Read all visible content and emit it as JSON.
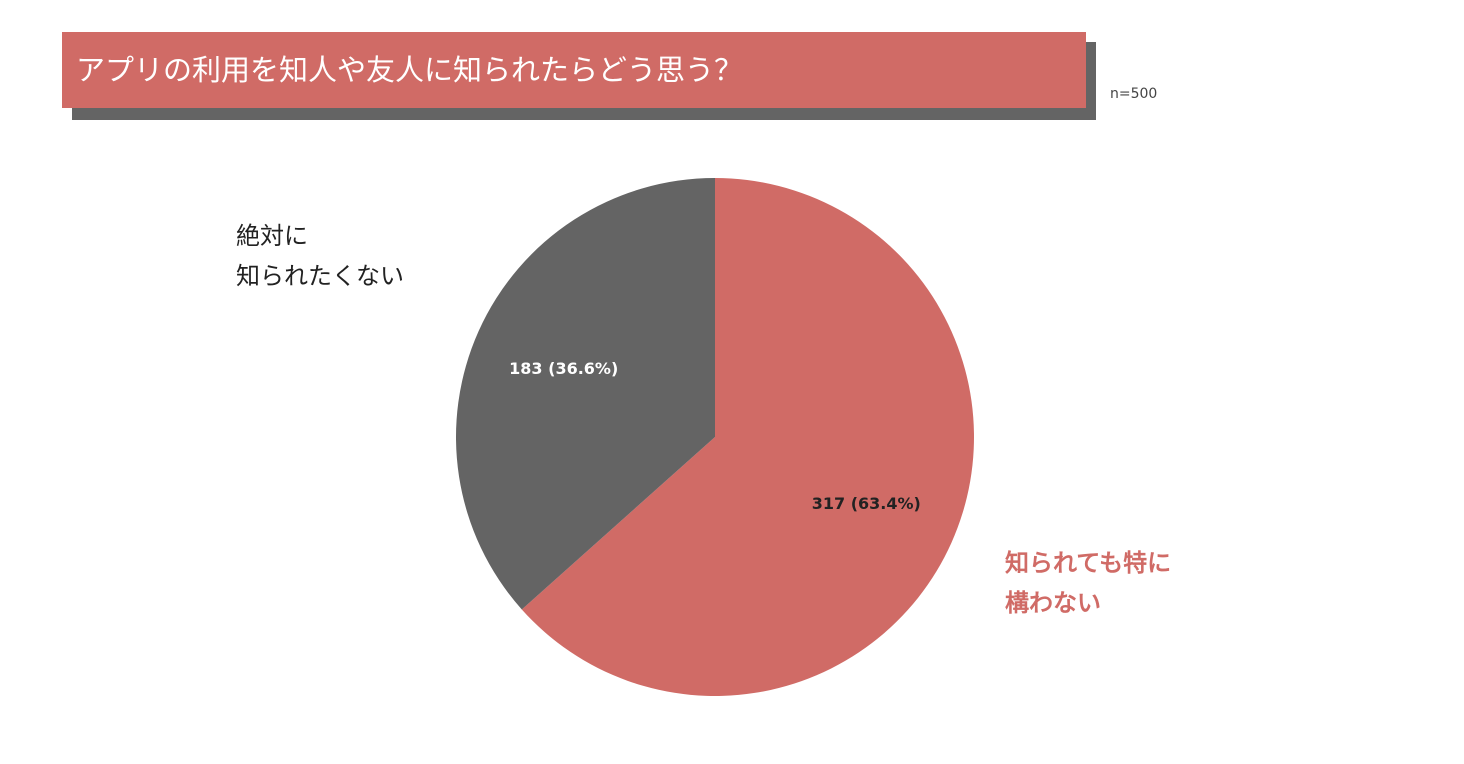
{
  "chart_data": {
    "type": "pie",
    "title": "アプリの利用を知人や友人に知られたらどう思う？",
    "note": "n=500",
    "categories": [
      "知られても特に\n構わない",
      "絶対に\n知られたくない"
    ],
    "values": [
      317,
      183
    ],
    "value_labels": [
      "317 (63.4%)",
      "183 (36.6%)"
    ],
    "colors": [
      "#d06b66",
      "#646464"
    ]
  }
}
